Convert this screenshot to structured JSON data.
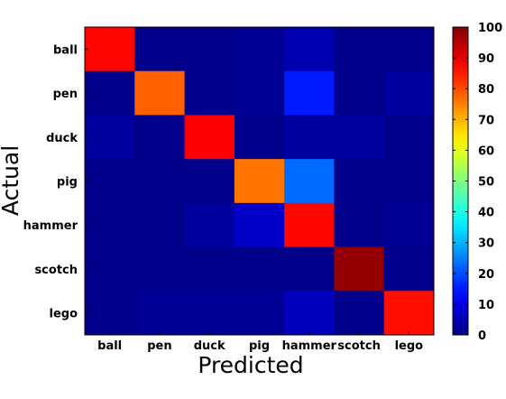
{
  "chart_data": {
    "type": "heatmap",
    "xlabel": "Predicted",
    "ylabel": "Actual",
    "x_categories": [
      "ball",
      "pen",
      "duck",
      "pig",
      "hammer",
      "scotch",
      "lego"
    ],
    "y_categories": [
      "ball",
      "pen",
      "duck",
      "pig",
      "hammer",
      "scotch",
      "lego"
    ],
    "values": [
      [
        87,
        1,
        1,
        2,
        5,
        1,
        1
      ],
      [
        1,
        78,
        1,
        2,
        15,
        1,
        3
      ],
      [
        3,
        1,
        88,
        1,
        3,
        3,
        1
      ],
      [
        1,
        1,
        1,
        76,
        23,
        1,
        1
      ],
      [
        1,
        1,
        3,
        7,
        87,
        1,
        2
      ],
      [
        1,
        1,
        1,
        1,
        1,
        98,
        1
      ],
      [
        1,
        2,
        2,
        2,
        6,
        1,
        86
      ]
    ],
    "colorbar": {
      "colormap": "jet",
      "range": [
        0,
        100
      ],
      "ticks": [
        0,
        10,
        20,
        30,
        40,
        50,
        60,
        70,
        80,
        90,
        100
      ]
    }
  }
}
